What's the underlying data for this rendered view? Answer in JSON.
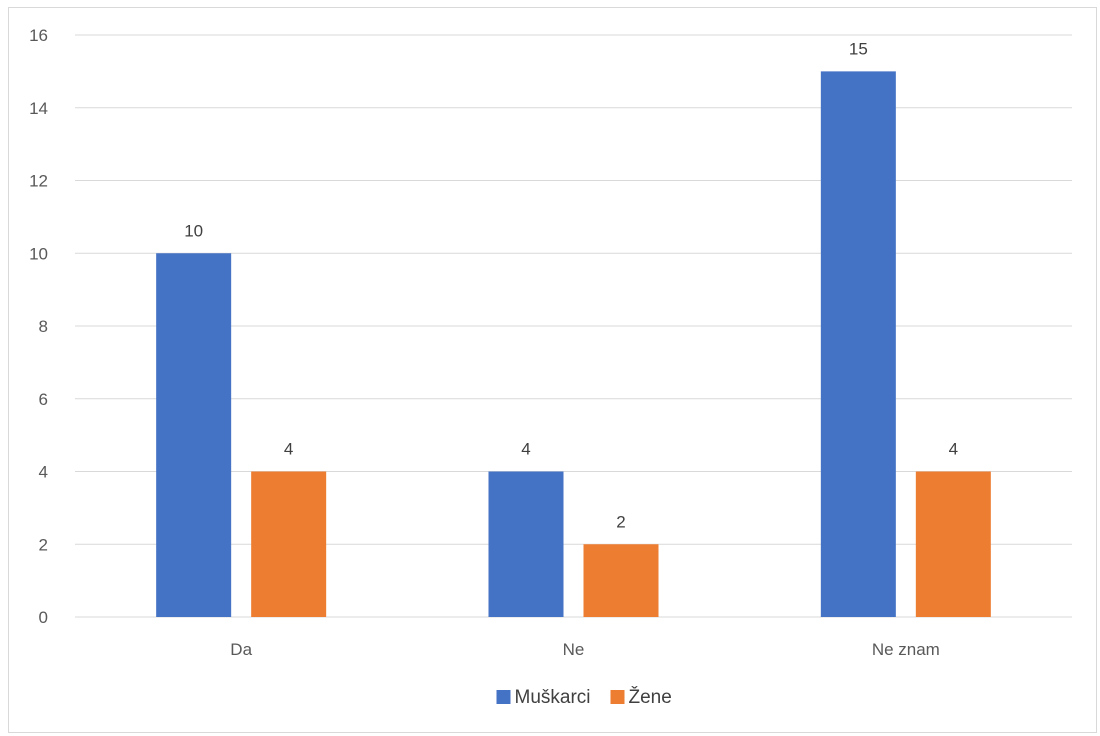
{
  "chart_data": {
    "type": "bar",
    "categories": [
      "Da",
      "Ne",
      "Ne znam"
    ],
    "series": [
      {
        "name": "Muškarci",
        "values": [
          10,
          4,
          15
        ],
        "color": "#4472C4"
      },
      {
        "name": "Žene",
        "values": [
          4,
          2,
          4
        ],
        "color": "#ED7D31"
      }
    ],
    "ylim": [
      0,
      16
    ],
    "yticks": [
      0,
      2,
      4,
      6,
      8,
      10,
      12,
      14,
      16
    ],
    "grid": true,
    "data_labels": true,
    "legend_position": "bottom"
  }
}
